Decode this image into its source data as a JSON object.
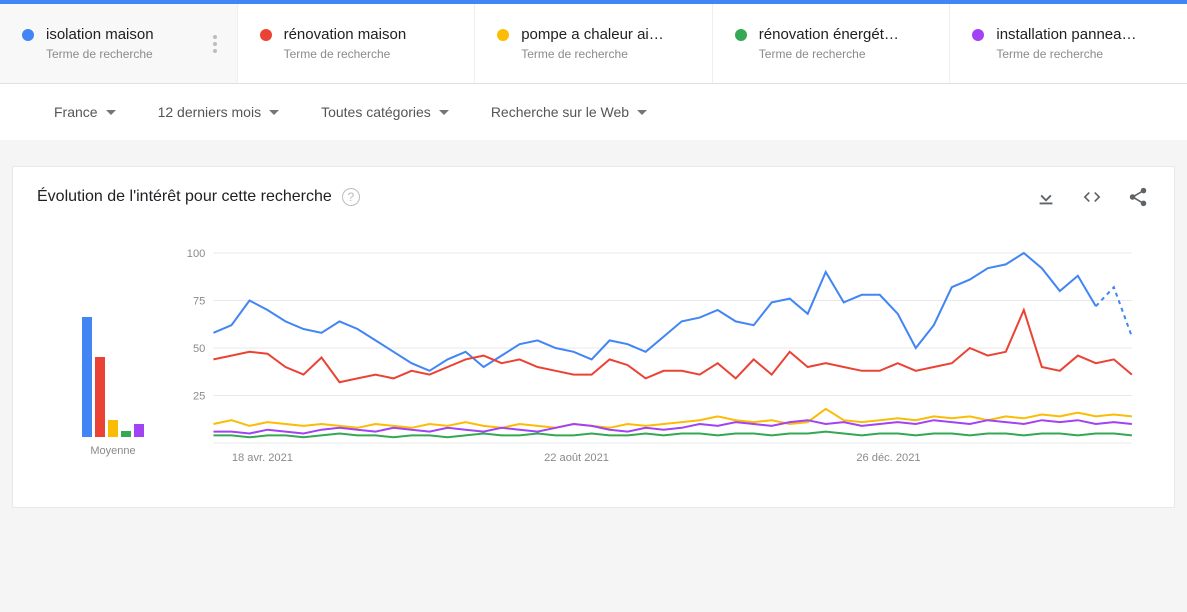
{
  "terms": [
    {
      "label": "isolation maison",
      "sub": "Terme de recherche",
      "color": "#4285f4",
      "active": true
    },
    {
      "label": "rénovation maison",
      "sub": "Terme de recherche",
      "color": "#ea4335",
      "active": false
    },
    {
      "label": "pompe a chaleur ai…",
      "sub": "Terme de recherche",
      "color": "#fbbc04",
      "active": false
    },
    {
      "label": "rénovation énergét…",
      "sub": "Terme de recherche",
      "color": "#34a853",
      "active": false
    },
    {
      "label": "installation pannea…",
      "sub": "Terme de recherche",
      "color": "#a142f4",
      "active": false
    }
  ],
  "filters": {
    "geo": "France",
    "time": "12 derniers mois",
    "category": "Toutes catégories",
    "surface": "Recherche sur le Web"
  },
  "panel": {
    "title": "Évolution de l'intérêt pour cette recherche"
  },
  "chart": {
    "type": "line",
    "ylim": [
      0,
      100
    ],
    "yticks": [
      25,
      50,
      75,
      100
    ],
    "xticks": [
      "18 avr. 2021",
      "22 août 2021",
      "26 déc. 2021"
    ],
    "xtick_positions": [
      0.02,
      0.36,
      0.7
    ],
    "avg_label": "Moyenne",
    "avg_values": [
      63,
      42,
      9,
      3,
      7
    ],
    "avg_colors": [
      "#4285f4",
      "#ea4335",
      "#fbbc04",
      "#34a853",
      "#a142f4"
    ],
    "background_color": "#ffffff",
    "grid_color": "#e8e8e8",
    "line_width": 2,
    "label_fontsize": 11,
    "n_points": 52,
    "series": [
      {
        "color": "#4285f4",
        "dash_tail": 2,
        "values": [
          58,
          62,
          75,
          70,
          64,
          60,
          58,
          64,
          60,
          54,
          48,
          42,
          38,
          44,
          48,
          40,
          46,
          52,
          54,
          50,
          48,
          44,
          54,
          52,
          48,
          56,
          64,
          66,
          70,
          64,
          62,
          74,
          76,
          68,
          90,
          74,
          78,
          78,
          68,
          50,
          62,
          82,
          86,
          92,
          94,
          100,
          92,
          80,
          88,
          72,
          82,
          56
        ]
      },
      {
        "color": "#ea4335",
        "dash_tail": 0,
        "values": [
          44,
          46,
          48,
          47,
          40,
          36,
          45,
          32,
          34,
          36,
          34,
          38,
          36,
          40,
          44,
          46,
          42,
          44,
          40,
          38,
          36,
          36,
          44,
          41,
          34,
          38,
          38,
          36,
          42,
          34,
          44,
          36,
          48,
          40,
          42,
          40,
          38,
          38,
          42,
          38,
          40,
          42,
          50,
          46,
          48,
          70,
          40,
          38,
          46,
          42,
          44,
          36
        ]
      },
      {
        "color": "#fbbc04",
        "dash_tail": 0,
        "values": [
          10,
          12,
          9,
          11,
          10,
          9,
          10,
          9,
          8,
          10,
          9,
          8,
          10,
          9,
          11,
          9,
          8,
          10,
          9,
          8,
          10,
          9,
          8,
          10,
          9,
          10,
          11,
          12,
          14,
          12,
          11,
          12,
          10,
          11,
          18,
          12,
          11,
          12,
          13,
          12,
          14,
          13,
          14,
          12,
          14,
          13,
          15,
          14,
          16,
          14,
          15,
          14
        ]
      },
      {
        "color": "#34a853",
        "dash_tail": 0,
        "values": [
          4,
          4,
          3,
          4,
          4,
          3,
          4,
          5,
          4,
          4,
          3,
          4,
          4,
          3,
          4,
          5,
          4,
          4,
          5,
          4,
          4,
          5,
          4,
          4,
          5,
          4,
          5,
          5,
          4,
          5,
          5,
          4,
          5,
          5,
          6,
          5,
          4,
          5,
          5,
          4,
          5,
          5,
          4,
          5,
          5,
          4,
          5,
          5,
          4,
          5,
          5,
          4
        ]
      },
      {
        "color": "#a142f4",
        "dash_tail": 0,
        "values": [
          6,
          6,
          5,
          7,
          6,
          5,
          7,
          8,
          7,
          6,
          8,
          7,
          6,
          8,
          7,
          6,
          8,
          7,
          6,
          8,
          10,
          9,
          7,
          6,
          8,
          7,
          8,
          10,
          9,
          11,
          10,
          9,
          11,
          12,
          10,
          11,
          9,
          10,
          11,
          10,
          12,
          11,
          10,
          12,
          11,
          10,
          12,
          11,
          12,
          10,
          11,
          10
        ]
      }
    ]
  }
}
